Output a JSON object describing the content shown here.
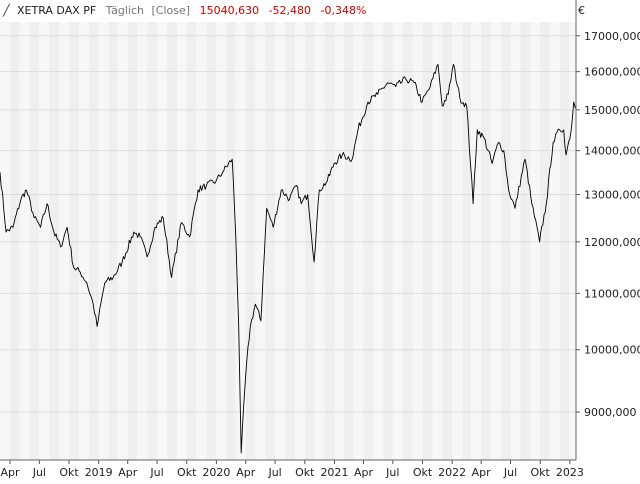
{
  "header": {
    "instrument": "XETRA DAX PF",
    "interval": "Täglich",
    "price_type": "[Close]",
    "last": "15040,630",
    "change": "-52,480",
    "change_pct": "-0,348%"
  },
  "currency": "€",
  "colors": {
    "line": "#000000",
    "down": "#cc0000",
    "band_light": "#f7f7f7",
    "band_dark": "#efefef",
    "grid": "#dddddd"
  },
  "chart_data": {
    "type": "line",
    "y_scale": "log",
    "ylim": [
      8300,
      17400
    ],
    "xlim": [
      "2018-03-01",
      "2023-01-20"
    ],
    "y_ticks": [
      {
        "value": 9000,
        "label": "9000,000"
      },
      {
        "value": 10000,
        "label": "10000,000"
      },
      {
        "value": 11000,
        "label": "11000,000"
      },
      {
        "value": 12000,
        "label": "12000,000"
      },
      {
        "value": 13000,
        "label": "13000,000"
      },
      {
        "value": 14000,
        "label": "14000,000"
      },
      {
        "value": 15000,
        "label": "15000,000"
      },
      {
        "value": 16000,
        "label": "16000,000"
      },
      {
        "value": 17000,
        "label": "17000,000"
      }
    ],
    "x_ticks": [
      {
        "date": "2018-04-01",
        "label": "Apr"
      },
      {
        "date": "2018-07-01",
        "label": "Jul"
      },
      {
        "date": "2018-10-01",
        "label": "Okt"
      },
      {
        "date": "2019-01-01",
        "label": "2019"
      },
      {
        "date": "2019-04-01",
        "label": "Apr"
      },
      {
        "date": "2019-07-01",
        "label": "Jul"
      },
      {
        "date": "2019-10-01",
        "label": "Okt"
      },
      {
        "date": "2020-01-01",
        "label": "2020"
      },
      {
        "date": "2020-04-01",
        "label": "Apr"
      },
      {
        "date": "2020-07-01",
        "label": "Jul"
      },
      {
        "date": "2020-10-01",
        "label": "Okt"
      },
      {
        "date": "2021-01-01",
        "label": "2021"
      },
      {
        "date": "2021-04-01",
        "label": "Apr"
      },
      {
        "date": "2021-07-01",
        "label": "Jul"
      },
      {
        "date": "2021-10-01",
        "label": "Okt"
      },
      {
        "date": "2022-01-01",
        "label": "2022"
      },
      {
        "date": "2022-04-01",
        "label": "Apr"
      },
      {
        "date": "2022-07-01",
        "label": "Jul"
      },
      {
        "date": "2022-10-01",
        "label": "Okt"
      },
      {
        "date": "2023-01-01",
        "label": "2023"
      }
    ],
    "series": [
      {
        "points": [
          [
            "2018-03-01",
            13500
          ],
          [
            "2018-03-20",
            12200
          ],
          [
            "2018-04-10",
            12300
          ],
          [
            "2018-05-05",
            12900
          ],
          [
            "2018-05-22",
            13100
          ],
          [
            "2018-06-15",
            12500
          ],
          [
            "2018-07-05",
            12300
          ],
          [
            "2018-07-25",
            12800
          ],
          [
            "2018-08-15",
            12200
          ],
          [
            "2018-09-05",
            11900
          ],
          [
            "2018-09-25",
            12300
          ],
          [
            "2018-10-15",
            11500
          ],
          [
            "2018-11-05",
            11400
          ],
          [
            "2018-11-25",
            11200
          ],
          [
            "2018-12-15",
            10800
          ],
          [
            "2018-12-27",
            10400
          ],
          [
            "2019-01-20",
            11200
          ],
          [
            "2019-02-15",
            11300
          ],
          [
            "2019-03-15",
            11600
          ],
          [
            "2019-04-20",
            12200
          ],
          [
            "2019-05-10",
            12100
          ],
          [
            "2019-05-31",
            11700
          ],
          [
            "2019-06-25",
            12300
          ],
          [
            "2019-07-20",
            12500
          ],
          [
            "2019-08-15",
            11300
          ],
          [
            "2019-09-15",
            12400
          ],
          [
            "2019-10-10",
            12100
          ],
          [
            "2019-11-05",
            13100
          ],
          [
            "2019-12-01",
            13200
          ],
          [
            "2019-12-31",
            13300
          ],
          [
            "2020-01-20",
            13500
          ],
          [
            "2020-02-19",
            13800
          ],
          [
            "2020-03-01",
            12100
          ],
          [
            "2020-03-10",
            10400
          ],
          [
            "2020-03-18",
            8400
          ],
          [
            "2020-04-01",
            9600
          ],
          [
            "2020-04-15",
            10400
          ],
          [
            "2020-05-01",
            10800
          ],
          [
            "2020-05-18",
            10500
          ],
          [
            "2020-06-05",
            12700
          ],
          [
            "2020-06-25",
            12300
          ],
          [
            "2020-07-20",
            13100
          ],
          [
            "2020-08-15",
            12900
          ],
          [
            "2020-09-05",
            13200
          ],
          [
            "2020-09-20",
            12800
          ],
          [
            "2020-10-10",
            13000
          ],
          [
            "2020-10-30",
            11600
          ],
          [
            "2020-11-15",
            13100
          ],
          [
            "2020-12-10",
            13300
          ],
          [
            "2020-12-31",
            13700
          ],
          [
            "2021-01-25",
            13900
          ],
          [
            "2021-02-25",
            13800
          ],
          [
            "2021-03-15",
            14500
          ],
          [
            "2021-04-15",
            15200
          ],
          [
            "2021-05-15",
            15400
          ],
          [
            "2021-06-15",
            15700
          ],
          [
            "2021-07-10",
            15600
          ],
          [
            "2021-08-10",
            15800
          ],
          [
            "2021-09-05",
            15700
          ],
          [
            "2021-09-30",
            15200
          ],
          [
            "2021-10-25",
            15600
          ],
          [
            "2021-11-18",
            16200
          ],
          [
            "2021-12-01",
            15100
          ],
          [
            "2021-12-20",
            15400
          ],
          [
            "2022-01-05",
            16200
          ],
          [
            "2022-01-25",
            15300
          ],
          [
            "2022-02-15",
            15100
          ],
          [
            "2022-03-07",
            12800
          ],
          [
            "2022-03-20",
            14500
          ],
          [
            "2022-04-10",
            14300
          ],
          [
            "2022-05-05",
            13700
          ],
          [
            "2022-05-25",
            14200
          ],
          [
            "2022-06-10",
            14000
          ],
          [
            "2022-06-25",
            13100
          ],
          [
            "2022-07-15",
            12700
          ],
          [
            "2022-08-15",
            13800
          ],
          [
            "2022-09-05",
            12800
          ],
          [
            "2022-09-29",
            12000
          ],
          [
            "2022-10-20",
            12800
          ],
          [
            "2022-11-10",
            14200
          ],
          [
            "2022-11-30",
            14500
          ],
          [
            "2022-12-13",
            14500
          ],
          [
            "2022-12-20",
            13900
          ],
          [
            "2023-01-05",
            14500
          ],
          [
            "2023-01-13",
            15200
          ],
          [
            "2023-01-18",
            15040
          ]
        ]
      }
    ]
  }
}
